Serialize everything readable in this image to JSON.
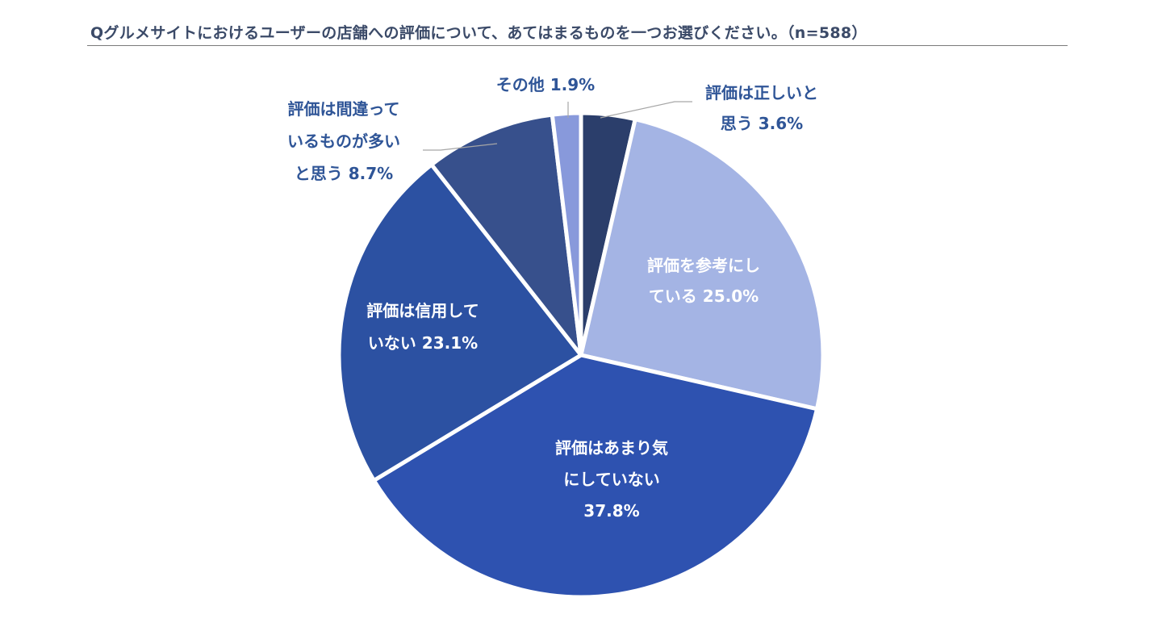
{
  "title": "Qグルメサイトにおけるユーザーの店舗への評価について、あてはまるものを一つお選びください。（n=588）",
  "chart_data": {
    "type": "pie",
    "title": "Qグルメサイトにおけるユーザーの店舗への評価について、あてはまるものを一つお選びください。（n=588）",
    "slices": [
      {
        "label_lines": [
          "評価は正しいと",
          "思う 3.6%"
        ],
        "value": 3.6,
        "color": "#2b3e6b"
      },
      {
        "label_lines": [
          "評価を参考にし",
          "ている 25.0%"
        ],
        "value": 25.0,
        "color": "#a4b4e4"
      },
      {
        "label_lines": [
          "評価はあまり気",
          "にしていない",
          "37.8%"
        ],
        "value": 37.8,
        "color": "#2e52b0"
      },
      {
        "label_lines": [
          "評価は信用して",
          "いない 23.1%"
        ],
        "value": 23.1,
        "color": "#2c51a2"
      },
      {
        "label_lines": [
          "評価は間違って",
          "いるものが多い",
          "と思う 8.7%"
        ],
        "value": 8.7,
        "color": "#37508c"
      },
      {
        "label_lines": [
          "その他 1.9%"
        ],
        "value": 1.9,
        "color": "#8899db"
      }
    ]
  }
}
